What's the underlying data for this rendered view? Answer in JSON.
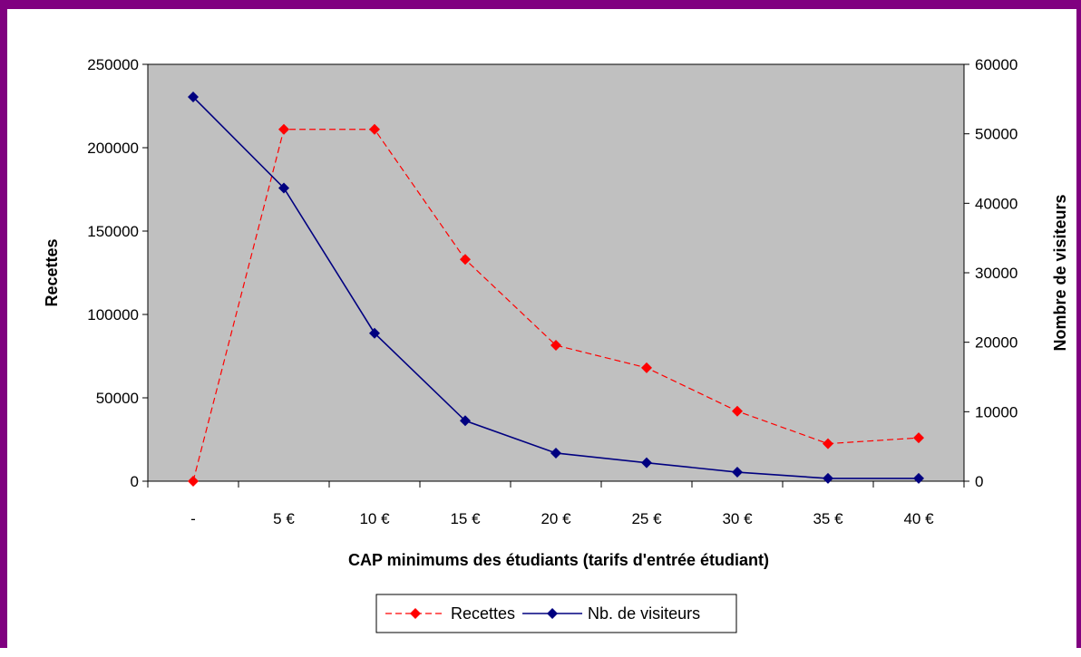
{
  "chart_data": {
    "type": "line",
    "title": "",
    "categories": [
      "-",
      "5 €",
      "10 €",
      "15 €",
      "20 €",
      "25 €",
      "30 €",
      "35 €",
      "40 €"
    ],
    "xlabel": "CAP minimums des étudiants (tarifs d'entrée étudiant)",
    "ylabel": "Recettes",
    "y2label": "Nombre de visiteurs",
    "ylim": [
      0,
      250000
    ],
    "y2lim": [
      0,
      60000
    ],
    "yticks": [
      "0",
      "50000",
      "100000",
      "150000",
      "200000",
      "250000"
    ],
    "y2ticks": [
      "0",
      "10000",
      "20000",
      "30000",
      "40000",
      "50000",
      "60000"
    ],
    "grid": false,
    "plot_background": "#c0c0c0",
    "legend_position": "bottom",
    "series": [
      {
        "name": "Recettes",
        "axis": "left",
        "color": "#ff0000",
        "line_style": "dashed",
        "marker": "diamond",
        "values": [
          0,
          211000,
          211000,
          133000,
          81500,
          68000,
          42000,
          22500,
          26000
        ]
      },
      {
        "name": "Nb. de visiteurs",
        "axis": "right",
        "color": "#000080",
        "line_style": "solid",
        "marker": "diamond",
        "values": [
          55300,
          42200,
          21300,
          8700,
          4050,
          2650,
          1300,
          400,
          400
        ]
      }
    ]
  }
}
